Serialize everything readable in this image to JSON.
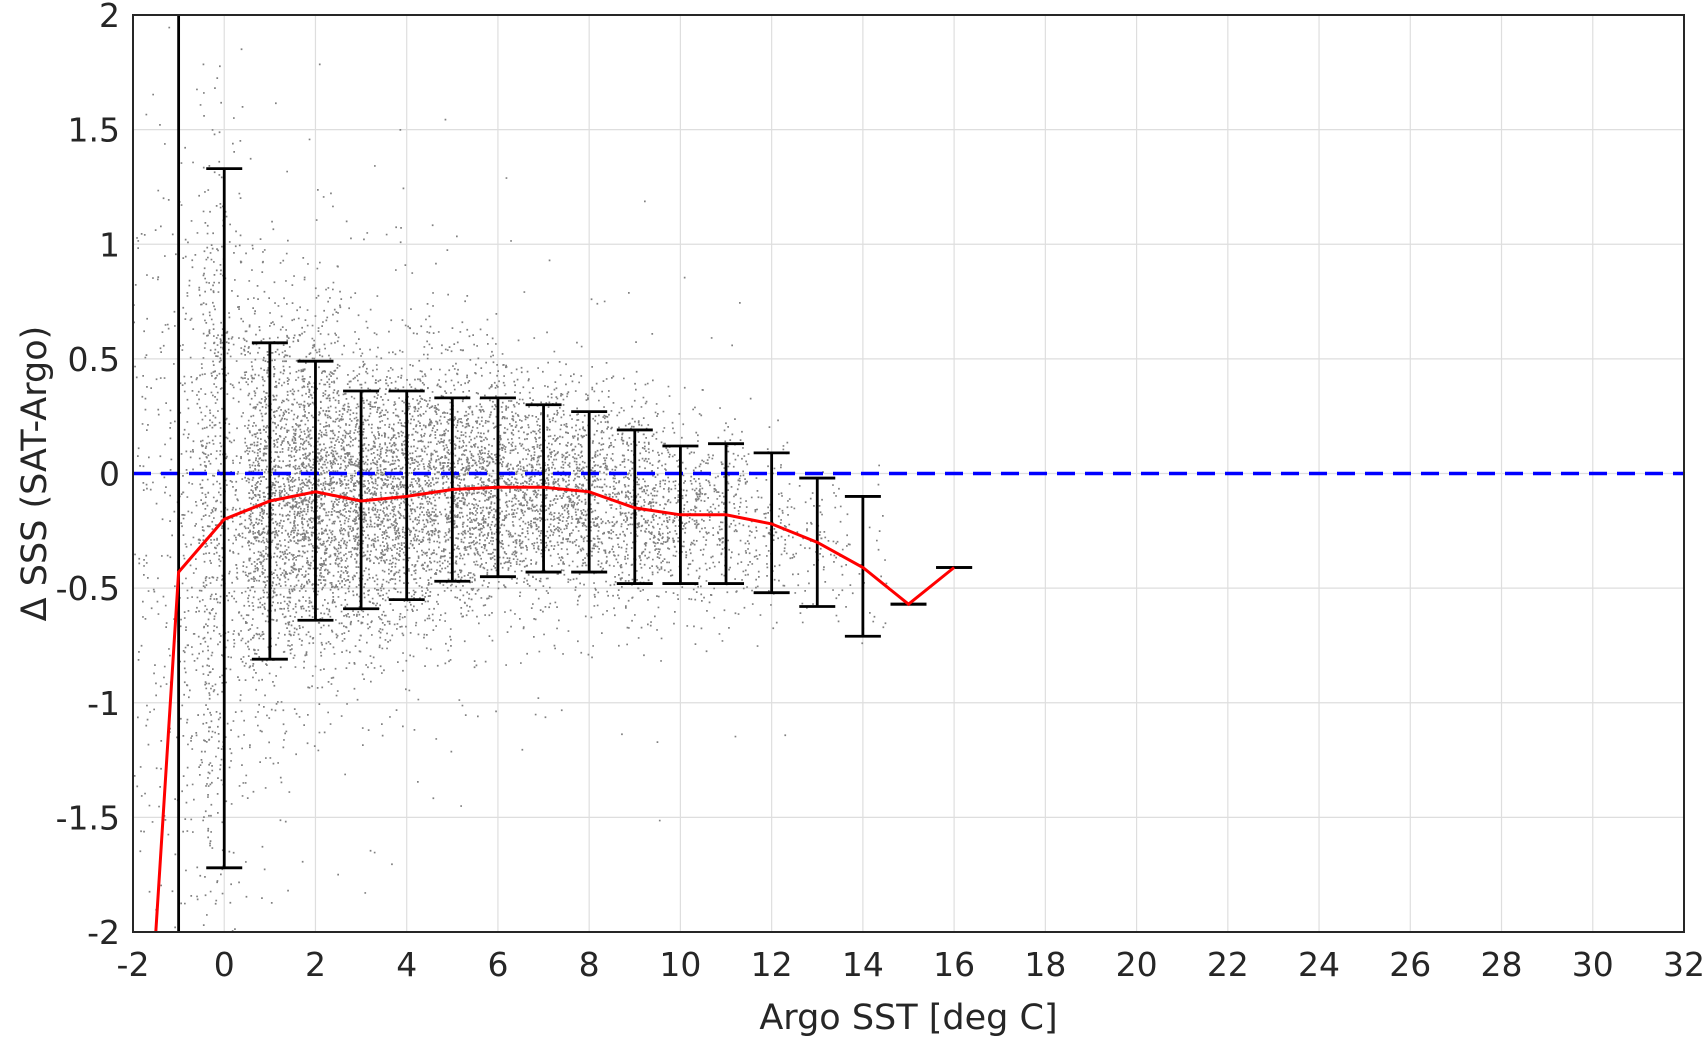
{
  "chart_data": {
    "type": "scatter",
    "xlabel": "Argo SST [deg C]",
    "ylabel": "Δ SSS (SAT-Argo)",
    "xlim": [
      -2,
      32
    ],
    "ylim": [
      -2,
      2
    ],
    "x_ticks": [
      -2,
      0,
      2,
      4,
      6,
      8,
      10,
      12,
      14,
      16,
      18,
      20,
      22,
      24,
      26,
      28,
      30,
      32
    ],
    "y_ticks": [
      -2,
      -1.5,
      -1,
      -0.5,
      0,
      0.5,
      1,
      1.5,
      2
    ],
    "x_tick_labels": [
      "-2",
      "0",
      "2",
      "4",
      "6",
      "8",
      "10",
      "12",
      "14",
      "16",
      "18",
      "20",
      "22",
      "24",
      "26",
      "28",
      "30",
      "32"
    ],
    "y_tick_labels": [
      "-2",
      "-1.5",
      "-1",
      "-0.5",
      "0",
      "0.5",
      "1",
      "1.5",
      "2"
    ],
    "grid": true,
    "legend": "none",
    "series": [
      {
        "kind": "scatter-cloud",
        "color": "#808080",
        "description_of_density": [
          {
            "x": -1.5,
            "mean": -0.3,
            "std": 0.9,
            "weight": 0.02
          },
          {
            "x": -0.5,
            "mean": -0.3,
            "std": 0.85,
            "weight": 0.05
          },
          {
            "x": 0,
            "mean": -0.2,
            "std": 0.75,
            "weight": 0.06
          },
          {
            "x": 1,
            "mean": -0.12,
            "std": 0.42,
            "weight": 0.12
          },
          {
            "x": 2,
            "mean": -0.08,
            "std": 0.36,
            "weight": 0.13
          },
          {
            "x": 3,
            "mean": -0.12,
            "std": 0.3,
            "weight": 0.11
          },
          {
            "x": 4,
            "mean": -0.1,
            "std": 0.3,
            "weight": 0.1
          },
          {
            "x": 5,
            "mean": -0.07,
            "std": 0.27,
            "weight": 0.09
          },
          {
            "x": 6,
            "mean": -0.06,
            "std": 0.26,
            "weight": 0.08
          },
          {
            "x": 7,
            "mean": -0.06,
            "std": 0.24,
            "weight": 0.07
          },
          {
            "x": 8,
            "mean": -0.08,
            "std": 0.23,
            "weight": 0.06
          },
          {
            "x": 9,
            "mean": -0.15,
            "std": 0.22,
            "weight": 0.05
          },
          {
            "x": 10,
            "mean": -0.18,
            "std": 0.2,
            "weight": 0.035
          },
          {
            "x": 11,
            "mean": -0.18,
            "std": 0.19,
            "weight": 0.025
          },
          {
            "x": 12,
            "mean": -0.22,
            "std": 0.18,
            "weight": 0.015
          },
          {
            "x": 13,
            "mean": -0.3,
            "std": 0.16,
            "weight": 0.008
          },
          {
            "x": 14,
            "mean": -0.41,
            "std": 0.15,
            "weight": 0.004
          }
        ]
      },
      {
        "kind": "mean-line",
        "color": "#ff0000",
        "x": [
          -1.5,
          -1,
          0,
          1,
          2,
          3,
          4,
          5,
          6,
          7,
          8,
          9,
          10,
          11,
          12,
          13,
          14,
          15,
          16
        ],
        "y": [
          -2.0,
          -0.43,
          -0.2,
          -0.12,
          -0.08,
          -0.12,
          -0.1,
          -0.07,
          -0.06,
          -0.06,
          -0.08,
          -0.15,
          -0.18,
          -0.18,
          -0.22,
          -0.3,
          -0.41,
          -0.57,
          -0.41
        ]
      },
      {
        "kind": "errorbars",
        "color": "#000000",
        "x": [
          0,
          1,
          2,
          3,
          4,
          5,
          6,
          7,
          8,
          9,
          10,
          11,
          12,
          13,
          14,
          15,
          16
        ],
        "upper": [
          1.33,
          0.57,
          0.49,
          0.36,
          0.36,
          0.33,
          0.33,
          0.3,
          0.27,
          0.19,
          0.12,
          0.13,
          0.09,
          -0.02,
          -0.1,
          -0.57,
          -0.41
        ],
        "lower": [
          -1.72,
          -0.81,
          -0.64,
          -0.59,
          -0.55,
          -0.47,
          -0.45,
          -0.43,
          -0.43,
          -0.48,
          -0.48,
          -0.48,
          -0.52,
          -0.58,
          -0.71,
          -0.57,
          -0.41
        ]
      },
      {
        "kind": "errorbar-extends-offscale",
        "color": "#000000",
        "x": -1
      },
      {
        "kind": "zero-reference",
        "color": "#0000ff",
        "y": 0,
        "style": "dashed"
      }
    ]
  }
}
